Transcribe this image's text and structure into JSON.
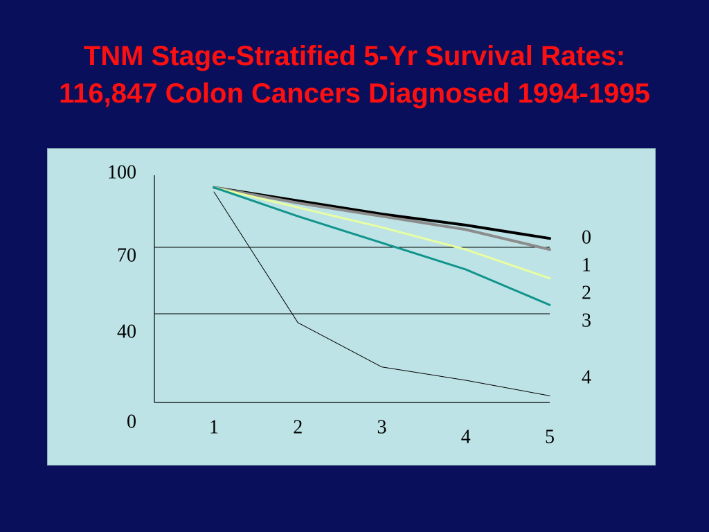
{
  "title": {
    "line1": "TNM  Stage-Stratified 5-Yr Survival Rates:",
    "line2": "116,847 Colon Cancers Diagnosed 1994-1995"
  },
  "colors": {
    "background": "#0a0f5c",
    "title": "#ff1010",
    "panel": "#bde3e6"
  },
  "chart_data": {
    "type": "line",
    "title": "TNM  Stage-Stratified 5-Yr Survival Rates: 116,847 Colon Cancers Diagnosed 1994-1995",
    "xlabel": "",
    "ylabel": "",
    "x": [
      1,
      2,
      3,
      4,
      5
    ],
    "x_tick_labels": [
      "1",
      "2",
      "3",
      "4",
      "5"
    ],
    "y_tick_labels": [
      "100",
      "70",
      "40",
      "0"
    ],
    "y_ticks": [
      100,
      70,
      40,
      0
    ],
    "ylim": [
      0,
      100
    ],
    "gridlines_y": [
      70,
      40
    ],
    "legend": {
      "placement": "right",
      "labels": [
        "0",
        "1",
        "2",
        "3",
        "4"
      ]
    },
    "series": [
      {
        "name": "0",
        "color": "#000000",
        "values": [
          97,
          91,
          85,
          80,
          74
        ]
      },
      {
        "name": "1",
        "color": "#8c8c8c",
        "values": [
          97,
          90,
          84,
          78,
          69
        ]
      },
      {
        "name": "2",
        "color": "#e8ffa0",
        "values": [
          97,
          88,
          79,
          69,
          56
        ]
      },
      {
        "name": "3",
        "color": "#10948c",
        "values": [
          97,
          84,
          72,
          60,
          44
        ]
      },
      {
        "name": "4",
        "color": "#000000",
        "values": [
          95,
          36,
          16,
          10,
          3
        ]
      }
    ]
  }
}
